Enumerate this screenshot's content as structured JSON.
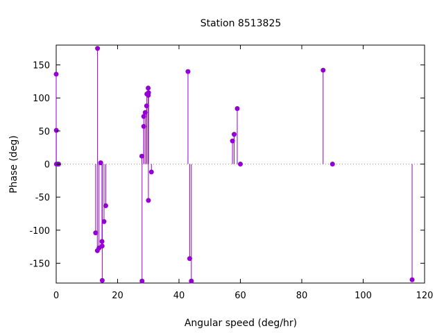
{
  "chart_data": {
    "type": "stem",
    "title": "Station 8513825",
    "xlabel": "Angular speed (deg/hr)",
    "ylabel": "Phase (deg)",
    "xlim": [
      0,
      120
    ],
    "ylim": [
      -180,
      180
    ],
    "xticks": [
      0,
      20,
      40,
      60,
      80,
      100,
      120
    ],
    "yticks": [
      -150,
      -100,
      -50,
      0,
      50,
      100,
      150
    ],
    "grid": false,
    "zero_line": "dotted",
    "color": "#9400D3",
    "points": [
      {
        "x": 0.0,
        "y": 136
      },
      {
        "x": 0.04,
        "y": 51
      },
      {
        "x": 0.08,
        "y": 0
      },
      {
        "x": 0.5,
        "y": 0
      },
      {
        "x": 0.8,
        "y": 0
      },
      {
        "x": 12.85,
        "y": -104
      },
      {
        "x": 13.4,
        "y": -131
      },
      {
        "x": 13.47,
        "y": 175
      },
      {
        "x": 13.94,
        "y": -127
      },
      {
        "x": 14.5,
        "y": 2
      },
      {
        "x": 14.92,
        "y": -117
      },
      {
        "x": 14.96,
        "y": -124
      },
      {
        "x": 15.0,
        "y": -176
      },
      {
        "x": 15.58,
        "y": -87
      },
      {
        "x": 16.14,
        "y": -63
      },
      {
        "x": 27.9,
        "y": 12
      },
      {
        "x": 27.97,
        "y": -177
      },
      {
        "x": 28.51,
        "y": 57
      },
      {
        "x": 28.51,
        "y": 72
      },
      {
        "x": 28.99,
        "y": 78
      },
      {
        "x": 29.46,
        "y": 88
      },
      {
        "x": 29.53,
        "y": 106
      },
      {
        "x": 29.96,
        "y": 115
      },
      {
        "x": 30.0,
        "y": 104
      },
      {
        "x": 30.04,
        "y": -55
      },
      {
        "x": 30.08,
        "y": 108
      },
      {
        "x": 31.02,
        "y": -12
      },
      {
        "x": 42.93,
        "y": 140
      },
      {
        "x": 43.48,
        "y": -143
      },
      {
        "x": 44.03,
        "y": -177
      },
      {
        "x": 57.42,
        "y": 35
      },
      {
        "x": 57.97,
        "y": 45
      },
      {
        "x": 58.98,
        "y": 84
      },
      {
        "x": 60.0,
        "y": 0
      },
      {
        "x": 86.95,
        "y": 142
      },
      {
        "x": 90.0,
        "y": 0
      },
      {
        "x": 115.94,
        "y": -175
      }
    ]
  }
}
